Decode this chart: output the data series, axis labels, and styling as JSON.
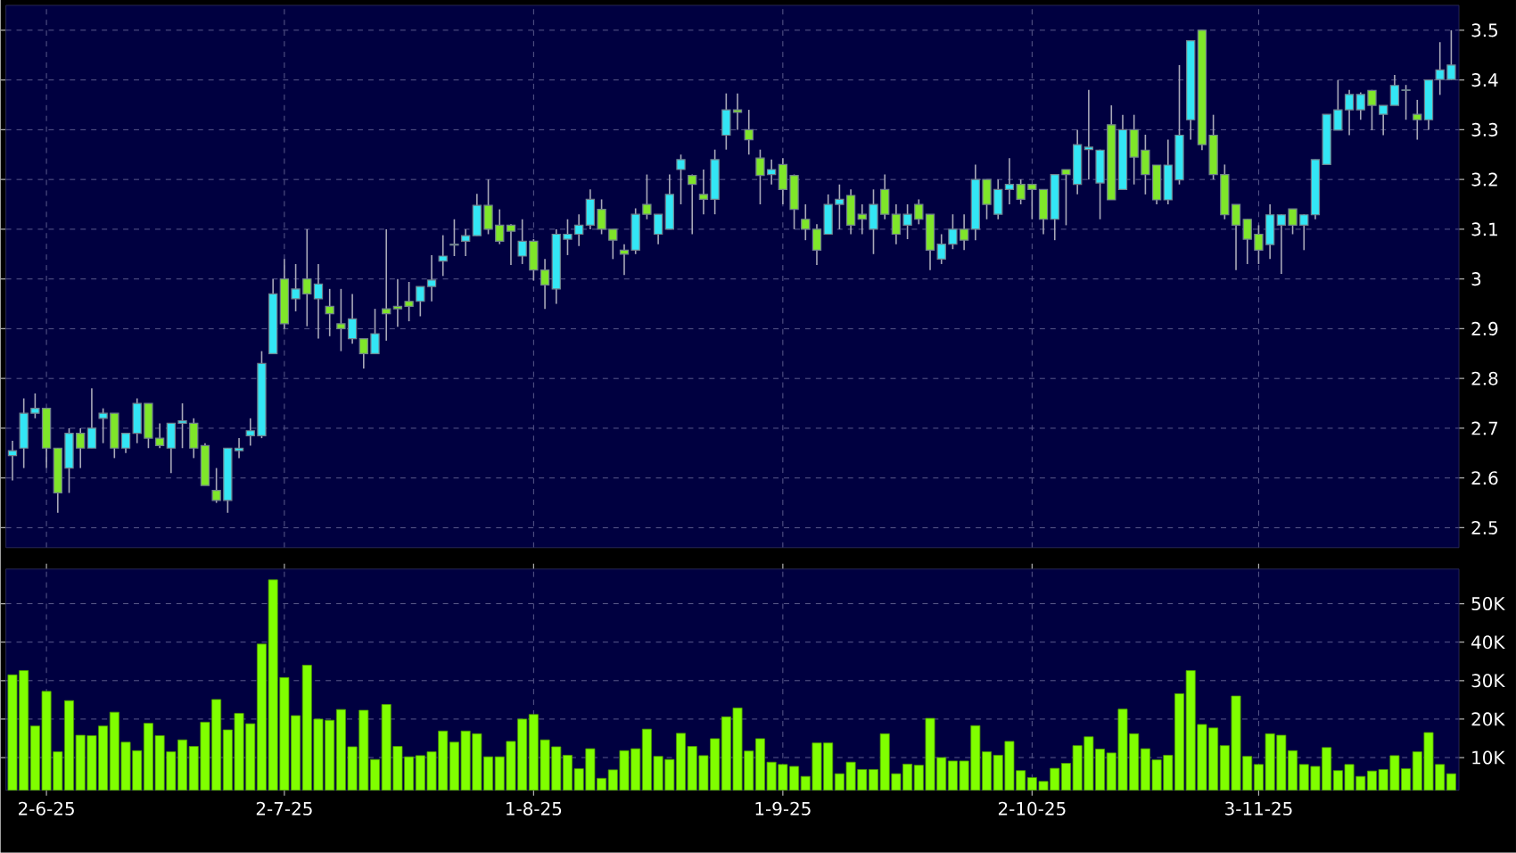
{
  "chart_data": [
    {
      "type": "candlestick",
      "tick_labels": "y",
      "grid": true,
      "categories": [
        null,
        null,
        null,
        null,
        null,
        null,
        null,
        null,
        null,
        null,
        null,
        null,
        null,
        null,
        null,
        null,
        null,
        null,
        null,
        null,
        null,
        null,
        null,
        null,
        null,
        null,
        null,
        null,
        null,
        null,
        null,
        null,
        null,
        null,
        null,
        null,
        null,
        null,
        null,
        null,
        null,
        null,
        null,
        null,
        null,
        null,
        null,
        null,
        null,
        null,
        null,
        null,
        null,
        null,
        null,
        null,
        null,
        null,
        null,
        null,
        null,
        null,
        null,
        null,
        null,
        null,
        null,
        null,
        null,
        null,
        null,
        null,
        null,
        null,
        null,
        null,
        null,
        null,
        null,
        null,
        null,
        null,
        null,
        null,
        null,
        null,
        null,
        null,
        null,
        null,
        null,
        null,
        null,
        null,
        null,
        null,
        null,
        null,
        null,
        null,
        null,
        null,
        null,
        null,
        null,
        null,
        null,
        null,
        null,
        null,
        null,
        null,
        null,
        null,
        null,
        null,
        null,
        null,
        null,
        null,
        null,
        null,
        null,
        null,
        null,
        null,
        null,
        null
      ],
      "ylim": [
        2.46,
        3.55
      ],
      "yticks": [
        2.5,
        2.6,
        2.7,
        2.8,
        2.9,
        3,
        3.1,
        3.2,
        3.3,
        3.4,
        3.5
      ],
      "ohlc": [
        [
          2.645,
          2.675,
          2.595,
          2.655
        ],
        [
          2.66,
          2.76,
          2.62,
          2.73
        ],
        [
          2.73,
          2.77,
          2.72,
          2.74
        ],
        [
          2.74,
          2.74,
          2.62,
          2.66
        ],
        [
          2.66,
          2.66,
          2.53,
          2.57
        ],
        [
          2.62,
          2.7,
          2.57,
          2.69
        ],
        [
          2.69,
          2.7,
          2.62,
          2.66
        ],
        [
          2.66,
          2.78,
          2.66,
          2.7
        ],
        [
          2.72,
          2.74,
          2.67,
          2.73
        ],
        [
          2.73,
          2.73,
          2.64,
          2.66
        ],
        [
          2.66,
          2.69,
          2.65,
          2.69
        ],
        [
          2.69,
          2.76,
          2.67,
          2.75
        ],
        [
          2.75,
          2.75,
          2.66,
          2.68
        ],
        [
          2.68,
          2.71,
          2.66,
          2.665
        ],
        [
          2.66,
          2.71,
          2.61,
          2.71
        ],
        [
          2.71,
          2.75,
          2.66,
          2.715
        ],
        [
          2.71,
          2.72,
          2.64,
          2.66
        ],
        [
          2.665,
          2.67,
          2.585,
          2.585
        ],
        [
          2.575,
          2.62,
          2.55,
          2.555
        ],
        [
          2.555,
          2.66,
          2.53,
          2.66
        ],
        [
          2.655,
          2.68,
          2.64,
          2.66
        ],
        [
          2.685,
          2.72,
          2.665,
          2.695
        ],
        [
          2.685,
          2.855,
          2.68,
          2.83
        ],
        [
          2.85,
          3.0,
          2.85,
          2.97
        ],
        [
          3.0,
          3.04,
          2.9,
          2.91
        ],
        [
          2.96,
          3.03,
          2.935,
          2.98
        ],
        [
          3.0,
          3.1,
          2.905,
          2.97
        ],
        [
          2.96,
          3.03,
          2.88,
          2.99
        ],
        [
          2.945,
          2.98,
          2.885,
          2.93
        ],
        [
          2.91,
          2.98,
          2.855,
          2.9
        ],
        [
          2.88,
          2.97,
          2.87,
          2.92
        ],
        [
          2.88,
          2.88,
          2.82,
          2.85
        ],
        [
          2.85,
          2.94,
          2.85,
          2.89
        ],
        [
          2.94,
          3.1,
          2.876,
          2.93
        ],
        [
          2.945,
          3.0,
          2.904,
          2.94
        ],
        [
          2.955,
          2.994,
          2.915,
          2.945
        ],
        [
          2.955,
          2.985,
          2.925,
          2.985
        ],
        [
          2.985,
          3.048,
          2.955,
          2.998
        ],
        [
          3.036,
          3.088,
          3.006,
          3.046
        ],
        [
          3.068,
          3.12,
          3.046,
          3.07
        ],
        [
          3.076,
          3.1,
          3.046,
          3.087
        ],
        [
          3.087,
          3.171,
          3.087,
          3.148
        ],
        [
          3.148,
          3.2,
          3.09,
          3.1
        ],
        [
          3.108,
          3.14,
          3.07,
          3.076
        ],
        [
          3.108,
          3.11,
          3.028,
          3.096
        ],
        [
          3.046,
          3.12,
          3.03,
          3.076
        ],
        [
          3.076,
          3.08,
          2.997,
          3.018
        ],
        [
          3.018,
          3.04,
          2.94,
          2.988
        ],
        [
          2.98,
          3.1,
          2.95,
          3.09
        ],
        [
          3.08,
          3.12,
          3.048,
          3.09
        ],
        [
          3.09,
          3.13,
          3.066,
          3.108
        ],
        [
          3.108,
          3.18,
          3.1,
          3.16
        ],
        [
          3.14,
          3.16,
          3.09,
          3.1
        ],
        [
          3.1,
          3.1,
          3.04,
          3.078
        ],
        [
          3.058,
          3.07,
          3.008,
          3.05
        ],
        [
          3.058,
          3.142,
          3.05,
          3.13
        ],
        [
          3.15,
          3.21,
          3.12,
          3.13
        ],
        [
          3.09,
          3.13,
          3.07,
          3.13
        ],
        [
          3.1,
          3.21,
          3.1,
          3.17
        ],
        [
          3.22,
          3.25,
          3.15,
          3.24
        ],
        [
          3.208,
          3.21,
          3.09,
          3.19
        ],
        [
          3.17,
          3.22,
          3.13,
          3.16
        ],
        [
          3.16,
          3.26,
          3.13,
          3.24
        ],
        [
          3.289,
          3.373,
          3.26,
          3.34
        ],
        [
          3.34,
          3.373,
          3.3,
          3.335
        ],
        [
          3.3,
          3.34,
          3.25,
          3.28
        ],
        [
          3.243,
          3.26,
          3.15,
          3.208
        ],
        [
          3.21,
          3.24,
          3.19,
          3.22
        ],
        [
          3.23,
          3.243,
          3.15,
          3.18
        ],
        [
          3.208,
          3.21,
          3.1,
          3.14
        ],
        [
          3.12,
          3.15,
          3.078,
          3.1
        ],
        [
          3.1,
          3.11,
          3.028,
          3.058
        ],
        [
          3.09,
          3.17,
          3.09,
          3.15
        ],
        [
          3.15,
          3.19,
          3.1,
          3.16
        ],
        [
          3.168,
          3.18,
          3.09,
          3.108
        ],
        [
          3.13,
          3.15,
          3.09,
          3.12
        ],
        [
          3.1,
          3.18,
          3.05,
          3.15
        ],
        [
          3.18,
          3.21,
          3.12,
          3.13
        ],
        [
          3.13,
          3.15,
          3.07,
          3.09
        ],
        [
          3.108,
          3.15,
          3.08,
          3.13
        ],
        [
          3.15,
          3.16,
          3.11,
          3.12
        ],
        [
          3.13,
          3.13,
          3.018,
          3.058
        ],
        [
          3.04,
          3.09,
          3.03,
          3.07
        ],
        [
          3.07,
          3.13,
          3.06,
          3.1
        ],
        [
          3.1,
          3.13,
          3.058,
          3.078
        ],
        [
          3.1,
          3.23,
          3.078,
          3.2
        ],
        [
          3.2,
          3.2,
          3.12,
          3.15
        ],
        [
          3.13,
          3.2,
          3.12,
          3.18
        ],
        [
          3.18,
          3.243,
          3.15,
          3.19
        ],
        [
          3.19,
          3.2,
          3.15,
          3.16
        ],
        [
          3.19,
          3.19,
          3.12,
          3.18
        ],
        [
          3.18,
          3.18,
          3.09,
          3.12
        ],
        [
          3.12,
          3.21,
          3.078,
          3.21
        ],
        [
          3.22,
          3.22,
          3.108,
          3.21
        ],
        [
          3.19,
          3.3,
          3.17,
          3.27
        ],
        [
          3.26,
          3.38,
          3.2,
          3.265
        ],
        [
          3.193,
          3.26,
          3.12,
          3.259
        ],
        [
          3.31,
          3.349,
          3.159,
          3.159
        ],
        [
          3.18,
          3.33,
          3.18,
          3.3
        ],
        [
          3.3,
          3.33,
          3.19,
          3.245
        ],
        [
          3.259,
          3.29,
          3.17,
          3.21
        ],
        [
          3.229,
          3.229,
          3.15,
          3.159
        ],
        [
          3.159,
          3.28,
          3.15,
          3.229
        ],
        [
          3.199,
          3.43,
          3.19,
          3.289
        ],
        [
          3.32,
          3.48,
          3.28,
          3.479
        ],
        [
          3.5,
          3.5,
          3.259,
          3.27
        ],
        [
          3.289,
          3.33,
          3.2,
          3.21
        ],
        [
          3.21,
          3.23,
          3.12,
          3.129
        ],
        [
          3.15,
          3.15,
          3.018,
          3.108
        ],
        [
          3.12,
          3.12,
          3.03,
          3.08
        ],
        [
          3.09,
          3.108,
          3.03,
          3.058
        ],
        [
          3.069,
          3.15,
          3.04,
          3.129
        ],
        [
          3.108,
          3.13,
          3.01,
          3.129
        ],
        [
          3.141,
          3.141,
          3.09,
          3.108
        ],
        [
          3.108,
          3.13,
          3.058,
          3.129
        ],
        [
          3.129,
          3.24,
          3.12,
          3.24
        ],
        [
          3.23,
          3.331,
          3.23,
          3.331
        ],
        [
          3.299,
          3.4,
          3.299,
          3.34
        ],
        [
          3.34,
          3.38,
          3.289,
          3.371
        ],
        [
          3.34,
          3.375,
          3.32,
          3.371
        ],
        [
          3.379,
          3.38,
          3.299,
          3.349
        ],
        [
          3.331,
          3.349,
          3.289,
          3.349
        ],
        [
          3.349,
          3.41,
          3.349,
          3.389
        ],
        [
          3.379,
          3.39,
          3.32,
          3.38
        ],
        [
          3.331,
          3.36,
          3.28,
          3.32
        ],
        [
          3.32,
          3.4,
          3.3,
          3.4
        ],
        [
          3.401,
          3.476,
          3.37,
          3.42
        ],
        [
          3.401,
          3.5,
          3.4,
          3.43
        ]
      ]
    },
    {
      "type": "bar",
      "grid": true,
      "color": "#80ff00",
      "categories": [
        null,
        null,
        null,
        "2-6-25",
        null,
        null,
        null,
        null,
        null,
        null,
        null,
        null,
        null,
        null,
        null,
        null,
        null,
        null,
        null,
        null,
        null,
        null,
        null,
        null,
        "2-7-25",
        null,
        null,
        null,
        null,
        null,
        null,
        null,
        null,
        null,
        null,
        null,
        null,
        null,
        null,
        null,
        null,
        null,
        null,
        null,
        null,
        null,
        "1-8-25",
        null,
        null,
        null,
        null,
        null,
        null,
        null,
        null,
        null,
        null,
        null,
        null,
        null,
        null,
        null,
        null,
        null,
        null,
        null,
        null,
        null,
        "1-9-25",
        null,
        null,
        null,
        null,
        null,
        null,
        null,
        null,
        null,
        null,
        null,
        null,
        null,
        null,
        null,
        null,
        null,
        null,
        null,
        null,
        null,
        "2-10-25",
        null,
        null,
        null,
        null,
        null,
        null,
        null,
        null,
        null,
        null,
        null,
        null,
        null,
        null,
        null,
        null,
        null,
        null,
        null,
        "3-11-25",
        null,
        null,
        null,
        null,
        null,
        null,
        null,
        null,
        null,
        null,
        null,
        null,
        null,
        null,
        null,
        null,
        null
      ],
      "ylim": [
        1500,
        59000
      ],
      "yticks": [
        {
          "value": 10000,
          "label": "10K"
        },
        {
          "value": 20000,
          "label": "20K"
        },
        {
          "value": 30000,
          "label": "30K"
        },
        {
          "value": 40000,
          "label": "40K"
        },
        {
          "value": 50000,
          "label": "50K"
        }
      ],
      "values": [
        31500,
        32600,
        18200,
        27200,
        11500,
        24800,
        15800,
        15700,
        18200,
        21800,
        14000,
        11800,
        18900,
        15700,
        11500,
        14600,
        12900,
        19200,
        25100,
        17200,
        21500,
        18800,
        39500,
        56200,
        30800,
        20900,
        34000,
        20000,
        19700,
        22500,
        12800,
        22300,
        9500,
        23800,
        12900,
        10200,
        10500,
        11500,
        16900,
        14000,
        16900,
        16200,
        10200,
        10200,
        14200,
        20000,
        21200,
        14600,
        12800,
        10600,
        7100,
        12300,
        4600,
        6800,
        11800,
        12300,
        17400,
        10300,
        9500,
        16300,
        12900,
        10500,
        14900,
        20600,
        22900,
        11700,
        14900,
        8800,
        8200,
        7700,
        5100,
        13800,
        13800,
        5800,
        8800,
        6900,
        6900,
        16200,
        5800,
        8300,
        8000,
        20200,
        10000,
        9100,
        9100,
        18300,
        11500,
        10600,
        14200,
        6600,
        4800,
        3800,
        7200,
        8500,
        13100,
        15400,
        12200,
        11200,
        22600,
        16200,
        12300,
        9400,
        10600,
        26600,
        32600,
        18600,
        17700,
        13100,
        26000,
        10300,
        8200,
        16200,
        15800,
        11800,
        8200,
        7700,
        12600,
        6600,
        8200,
        5100,
        6500,
        6900,
        10500,
        7100,
        11500,
        16500,
        8200,
        5800
      ]
    }
  ]
}
